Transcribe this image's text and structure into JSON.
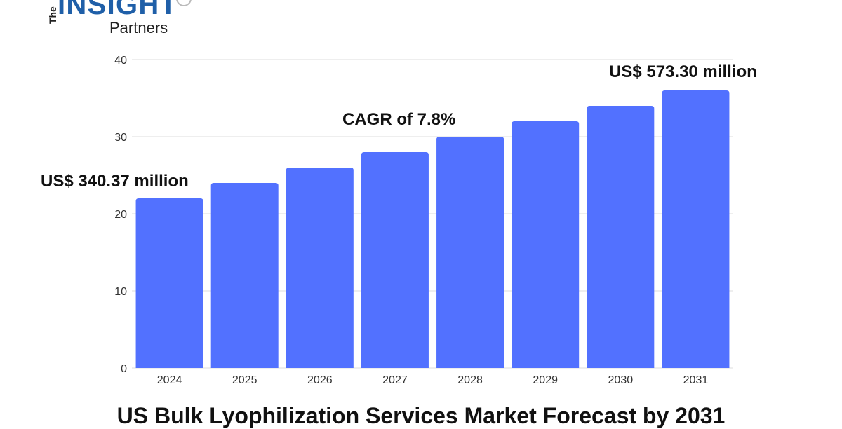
{
  "logo": {
    "line1": "The",
    "line2": "INSIGHT",
    "line3": "Partners"
  },
  "chart_data": {
    "type": "bar",
    "title": "US Bulk Lyophilization Services Market Forecast by 2031",
    "categories": [
      "2024",
      "2025",
      "2026",
      "2027",
      "2028",
      "2029",
      "2030",
      "2031"
    ],
    "values": [
      22,
      24,
      26,
      28,
      30,
      32,
      34,
      36
    ],
    "ylim": [
      0,
      40
    ],
    "yticks": [
      0,
      10,
      20,
      30,
      40
    ],
    "grid": true,
    "bar_color": "#5271ff",
    "annotations": {
      "start": "US$ 340.37 million",
      "cagr": "CAGR of 7.8%",
      "end": "US$ 573.30 million"
    }
  }
}
